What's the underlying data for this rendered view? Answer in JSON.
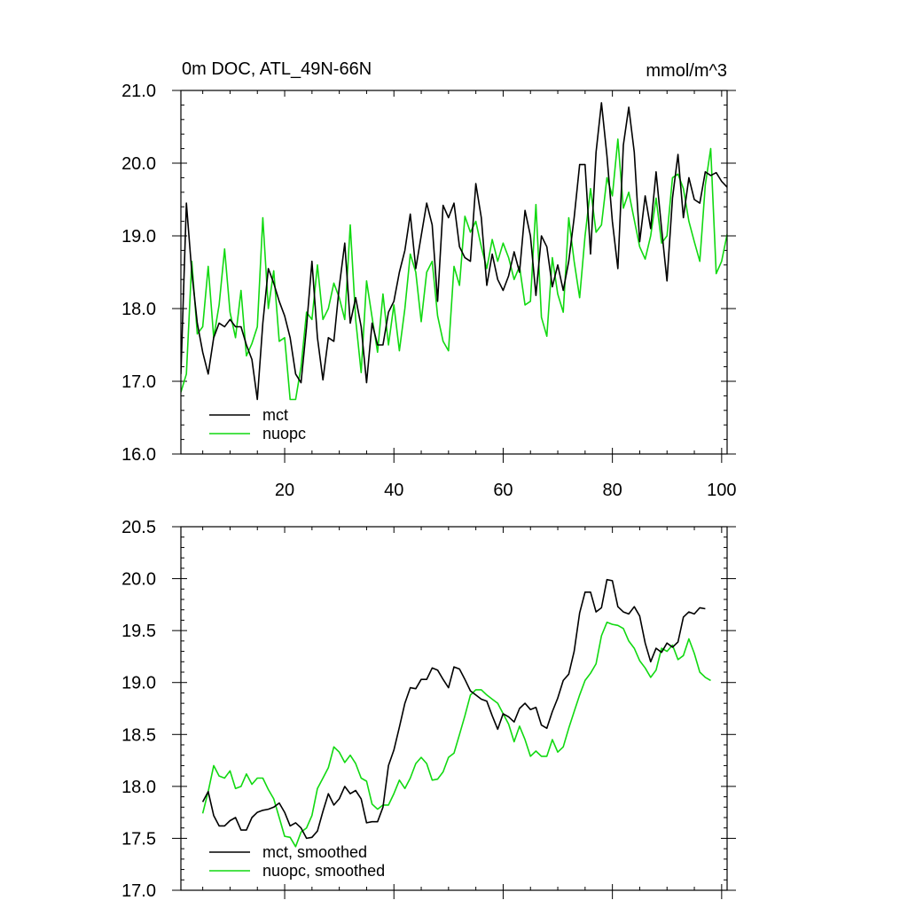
{
  "header": {
    "title": "0m DOC, ATL_49N-66N",
    "units": "mmol/m^3"
  },
  "chart_data": [
    {
      "type": "line",
      "title": "0m DOC, ATL_49N-66N",
      "units": "mmol/m^3",
      "xlim": [
        1,
        101
      ],
      "ylim": [
        16.0,
        21.0
      ],
      "x_ticks": [
        "20",
        "40",
        "60",
        "80",
        "100"
      ],
      "y_ticks": [
        "16.0",
        "17.0",
        "18.0",
        "19.0",
        "20.0",
        "21.0"
      ],
      "legend_position": "bottom-left",
      "series": [
        {
          "name": "mct",
          "color": "#000000",
          "x_start": 1,
          "values": [
            17.1,
            19.45,
            18.5,
            17.8,
            17.4,
            17.1,
            17.6,
            17.8,
            17.75,
            17.85,
            17.75,
            17.75,
            17.5,
            17.3,
            16.75,
            17.8,
            18.55,
            18.35,
            18.1,
            17.9,
            17.6,
            17.1,
            16.98,
            17.75,
            18.65,
            17.6,
            17.02,
            17.6,
            17.55,
            18.3,
            18.9,
            17.8,
            18.15,
            17.75,
            16.98,
            17.8,
            17.5,
            17.5,
            17.95,
            18.1,
            18.5,
            18.8,
            19.3,
            18.55,
            19.0,
            19.45,
            19.15,
            18.1,
            19.42,
            19.25,
            19.45,
            18.85,
            18.7,
            18.65,
            19.72,
            19.25,
            18.32,
            18.75,
            18.4,
            18.25,
            18.45,
            18.78,
            18.5,
            19.35,
            19.0,
            18.18,
            19.0,
            18.85,
            18.3,
            18.6,
            18.25,
            18.65,
            19.25,
            19.98,
            19.98,
            18.75,
            20.15,
            20.83,
            20.1,
            19.2,
            18.55,
            20.25,
            20.77,
            20.15,
            18.92,
            19.55,
            19.1,
            19.88,
            19.1,
            18.38,
            19.52,
            20.12,
            19.25,
            19.8,
            19.5,
            19.45,
            19.88,
            19.83,
            19.87,
            19.75,
            19.67
          ]
        },
        {
          "name": "nuopc",
          "color": "#11d911",
          "x_start": 1,
          "values": [
            16.85,
            17.1,
            18.65,
            17.65,
            17.75,
            18.58,
            17.6,
            18.05,
            18.82,
            17.95,
            17.6,
            18.25,
            17.35,
            17.52,
            17.75,
            19.25,
            18.0,
            18.52,
            17.55,
            17.6,
            16.75,
            16.75,
            17.2,
            17.95,
            17.85,
            18.6,
            17.85,
            18.0,
            18.35,
            18.15,
            17.85,
            19.15,
            17.85,
            17.12,
            18.38,
            17.88,
            17.4,
            18.2,
            17.5,
            18.05,
            17.42,
            18.0,
            18.75,
            18.5,
            17.82,
            18.5,
            18.65,
            17.9,
            17.55,
            17.42,
            18.58,
            18.32,
            19.27,
            19.05,
            19.2,
            18.85,
            18.55,
            18.95,
            18.65,
            18.9,
            18.7,
            18.4,
            18.58,
            18.05,
            18.1,
            19.43,
            17.88,
            17.62,
            18.7,
            18.2,
            17.95,
            19.25,
            18.65,
            18.15,
            19.0,
            19.65,
            19.05,
            19.15,
            19.8,
            19.55,
            20.33,
            19.38,
            19.6,
            19.22,
            18.85,
            18.68,
            19.0,
            19.52,
            18.9,
            19.0,
            19.8,
            19.85,
            19.65,
            19.2,
            18.92,
            18.65,
            19.7,
            20.2,
            18.48,
            18.65,
            19.02,
            18.82
          ]
        }
      ]
    },
    {
      "type": "line",
      "xlim": [
        1,
        101
      ],
      "ylim": [
        17.0,
        20.5
      ],
      "y_ticks": [
        "17.0",
        "17.5",
        "18.0",
        "18.5",
        "19.0",
        "19.5",
        "20.0",
        "20.5"
      ],
      "legend_position": "bottom-left",
      "series": [
        {
          "name": "mct, smoothed",
          "color": "#000000",
          "x_start": 5,
          "values": [
            17.85,
            17.95,
            17.72,
            17.62,
            17.62,
            17.67,
            17.7,
            17.58,
            17.58,
            17.7,
            17.75,
            17.77,
            17.78,
            17.8,
            17.84,
            17.75,
            17.62,
            17.65,
            17.6,
            17.5,
            17.51,
            17.57,
            17.76,
            17.93,
            17.82,
            17.88,
            18.0,
            17.93,
            17.96,
            17.88,
            17.65,
            17.66,
            17.66,
            17.8,
            18.2,
            18.35,
            18.57,
            18.8,
            18.95,
            18.94,
            19.03,
            19.03,
            19.14,
            19.12,
            19.03,
            18.95,
            19.15,
            19.13,
            19.03,
            18.92,
            18.88,
            18.84,
            18.82,
            18.68,
            18.55,
            18.7,
            18.67,
            18.62,
            18.75,
            18.8,
            18.74,
            18.76,
            18.59,
            18.56,
            18.72,
            18.85,
            19.02,
            19.08,
            19.3,
            19.67,
            19.87,
            19.87,
            19.68,
            19.72,
            19.99,
            19.98,
            19.73,
            19.68,
            19.66,
            19.73,
            19.64,
            19.38,
            19.2,
            19.33,
            19.29,
            19.38,
            19.34,
            19.39,
            19.63,
            19.68,
            19.66,
            19.72,
            19.71
          ]
        },
        {
          "name": "nuopc, smoothed",
          "color": "#11d911",
          "x_start": 5,
          "values": [
            17.74,
            17.95,
            18.2,
            18.1,
            18.08,
            18.15,
            17.98,
            18.0,
            18.12,
            18.02,
            18.08,
            18.08,
            17.97,
            17.88,
            17.7,
            17.52,
            17.51,
            17.42,
            17.56,
            17.6,
            17.72,
            17.98,
            18.08,
            18.18,
            18.38,
            18.33,
            18.23,
            18.3,
            18.22,
            18.08,
            18.05,
            17.83,
            17.78,
            17.82,
            17.82,
            17.93,
            18.06,
            17.98,
            18.08,
            18.22,
            18.28,
            18.22,
            18.06,
            18.07,
            18.14,
            18.28,
            18.32,
            18.5,
            18.68,
            18.88,
            18.93,
            18.93,
            18.88,
            18.84,
            18.8,
            18.7,
            18.6,
            18.43,
            18.58,
            18.45,
            18.29,
            18.34,
            18.29,
            18.29,
            18.45,
            18.33,
            18.38,
            18.56,
            18.72,
            18.88,
            19.02,
            19.09,
            19.18,
            19.45,
            19.58,
            19.56,
            19.55,
            19.52,
            19.4,
            19.33,
            19.21,
            19.14,
            19.05,
            19.12,
            19.33,
            19.3,
            19.36,
            19.22,
            19.26,
            19.42,
            19.28,
            19.1,
            19.05,
            19.02
          ]
        }
      ]
    }
  ]
}
